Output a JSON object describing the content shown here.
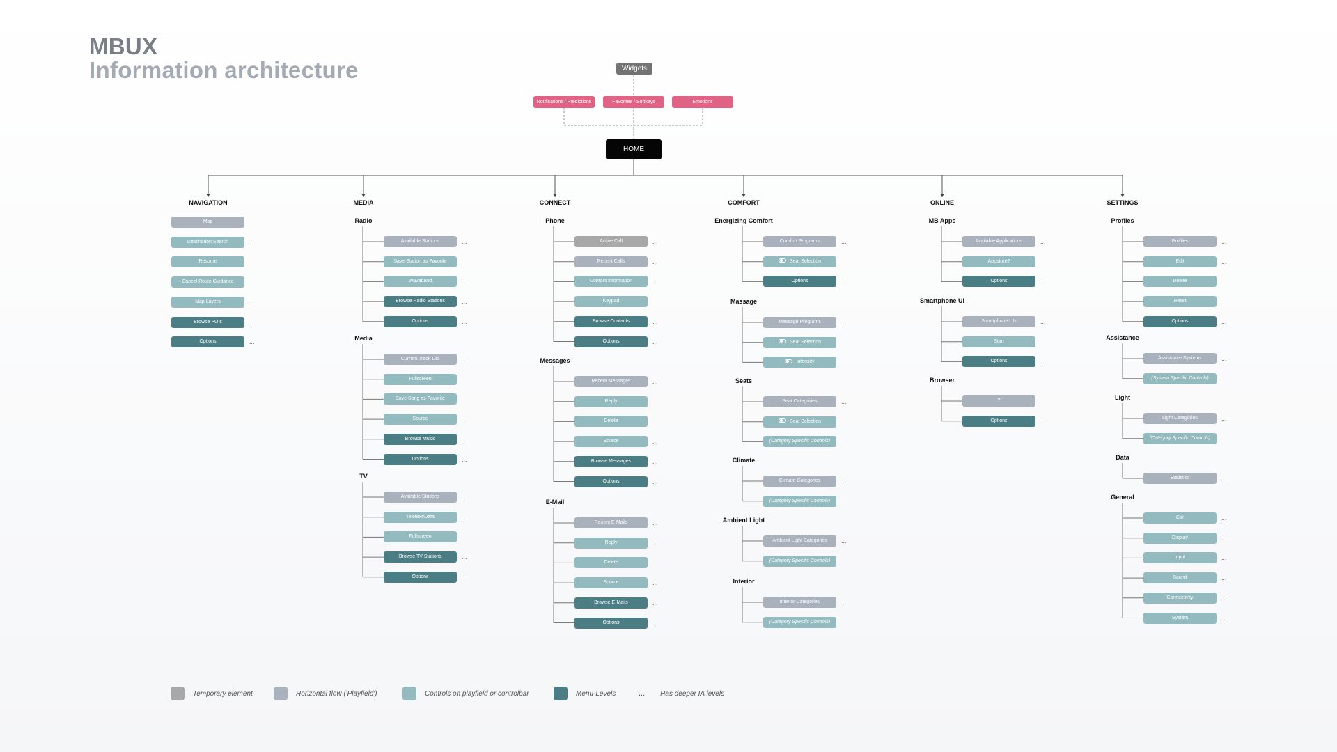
{
  "title": {
    "line1": "MBUX",
    "line2": "Information architecture"
  },
  "widgets_label": "Widgets",
  "top_items": [
    "Notifications / Predictions",
    "Favorites / Softkeys",
    "Emotions"
  ],
  "home_label": "HOME",
  "colors": {
    "temporary": "#a8a8a8",
    "horizontal": "#a9b1bd",
    "controls": "#93bbbf",
    "menu": "#4b7d85",
    "widget_accent": "#e06284"
  },
  "columns": [
    {
      "name": "NAVIGATION",
      "groups": [
        {
          "name": "",
          "items": [
            {
              "label": "Map",
              "type": "h"
            },
            {
              "label": "Destination Search",
              "type": "c",
              "more": true
            },
            {
              "label": "Resume",
              "type": "c"
            },
            {
              "label": "Cancel Route Guidance",
              "type": "c"
            },
            {
              "label": "Map Layers",
              "type": "c",
              "more": true
            },
            {
              "label": "Browse POIs",
              "type": "m",
              "more": true
            },
            {
              "label": "Options",
              "type": "m",
              "more": true
            }
          ]
        }
      ]
    },
    {
      "name": "MEDIA",
      "groups": [
        {
          "name": "Radio",
          "items": [
            {
              "label": "Available Stations",
              "type": "h",
              "more": true
            },
            {
              "label": "Save Station as Favorite",
              "type": "c"
            },
            {
              "label": "Waveband",
              "type": "c",
              "more": true
            },
            {
              "label": "Browse Radio Stations",
              "type": "m",
              "more": true
            },
            {
              "label": "Options",
              "type": "m",
              "more": true
            }
          ]
        },
        {
          "name": "Media",
          "items": [
            {
              "label": "Current Track List",
              "type": "h",
              "more": true
            },
            {
              "label": "Fullscreen",
              "type": "c"
            },
            {
              "label": "Save Song as Favorite",
              "type": "c"
            },
            {
              "label": "Source",
              "type": "c",
              "more": true
            },
            {
              "label": "Browse Music",
              "type": "m",
              "more": true
            },
            {
              "label": "Options",
              "type": "m",
              "more": true
            }
          ]
        },
        {
          "name": "TV",
          "items": [
            {
              "label": "Available Stations",
              "type": "h",
              "more": true
            },
            {
              "label": "Teletext/Data",
              "type": "c",
              "more": true
            },
            {
              "label": "Fullscreen",
              "type": "c"
            },
            {
              "label": "Browse TV Stations",
              "type": "m",
              "more": true
            },
            {
              "label": "Options",
              "type": "m",
              "more": true
            }
          ]
        }
      ]
    },
    {
      "name": "CONNECT",
      "groups": [
        {
          "name": "Phone",
          "items": [
            {
              "label": "Active Call",
              "type": "t",
              "more": true
            },
            {
              "label": "Recent Calls",
              "type": "h",
              "more": true
            },
            {
              "label": "Contact Information",
              "type": "c",
              "more": true
            },
            {
              "label": "Keypad",
              "type": "c"
            },
            {
              "label": "Browse Contacts",
              "type": "m",
              "more": true
            },
            {
              "label": "Options",
              "type": "m",
              "more": true
            }
          ]
        },
        {
          "name": "Messages",
          "items": [
            {
              "label": "Recent Messages",
              "type": "h",
              "more": true
            },
            {
              "label": "Reply",
              "type": "c"
            },
            {
              "label": "Delete",
              "type": "c"
            },
            {
              "label": "Source",
              "type": "c",
              "more": true
            },
            {
              "label": "Browse Messages",
              "type": "m",
              "more": true
            },
            {
              "label": "Options",
              "type": "m",
              "more": true
            }
          ]
        },
        {
          "name": "E-Mail",
          "items": [
            {
              "label": "Recent E-Mails",
              "type": "h",
              "more": true
            },
            {
              "label": "Reply",
              "type": "c",
              "more": true
            },
            {
              "label": "Delete",
              "type": "c"
            },
            {
              "label": "Source",
              "type": "c",
              "more": true
            },
            {
              "label": "Browse E-Mails",
              "type": "m",
              "more": true
            },
            {
              "label": "Options",
              "type": "m",
              "more": true
            }
          ]
        }
      ]
    },
    {
      "name": "COMFORT",
      "groups": [
        {
          "name": "Energizing Comfort",
          "items": [
            {
              "label": "Comfort Programs",
              "type": "h",
              "more": true
            },
            {
              "label": "Seat Selection",
              "type": "c",
              "toggle": true
            },
            {
              "label": "Options",
              "type": "m",
              "more": true
            }
          ]
        },
        {
          "name": "Massage",
          "items": [
            {
              "label": "Massage Programs",
              "type": "h",
              "more": true
            },
            {
              "label": "Seat Selection",
              "type": "c",
              "toggle": true
            },
            {
              "label": "Intensity",
              "type": "c",
              "toggle": true
            }
          ]
        },
        {
          "name": "Seats",
          "items": [
            {
              "label": "Seat Categories",
              "type": "h",
              "more": true
            },
            {
              "label": "Seat Selection",
              "type": "c",
              "toggle": true
            },
            {
              "label": "(Category Specific Controls)",
              "type": "c",
              "italic": true
            }
          ]
        },
        {
          "name": "Climate",
          "items": [
            {
              "label": "Climate Categories",
              "type": "h",
              "more": true
            },
            {
              "label": "(Category Specific Controls)",
              "type": "c",
              "italic": true
            }
          ]
        },
        {
          "name": "Ambient Light",
          "items": [
            {
              "label": "Ambient Light Categories",
              "type": "h",
              "more": true
            },
            {
              "label": "(Category Specific Controls)",
              "type": "c",
              "italic": true
            }
          ]
        },
        {
          "name": "Interior",
          "items": [
            {
              "label": "Interior Categories",
              "type": "h",
              "more": true
            },
            {
              "label": "(Category Specific Controls)",
              "type": "c",
              "italic": true
            }
          ]
        }
      ]
    },
    {
      "name": "ONLINE",
      "groups": [
        {
          "name": "MB Apps",
          "items": [
            {
              "label": "Available Applications",
              "type": "h",
              "more": true
            },
            {
              "label": "Appstore?",
              "type": "c"
            },
            {
              "label": "Options",
              "type": "m",
              "more": true
            }
          ]
        },
        {
          "name": "Smartphone UI",
          "items": [
            {
              "label": "Smartphone UIs",
              "type": "h",
              "more": true
            },
            {
              "label": "Start",
              "type": "c"
            },
            {
              "label": "Options",
              "type": "m",
              "more": true
            }
          ]
        },
        {
          "name": "Browser",
          "items": [
            {
              "label": "?",
              "type": "h"
            },
            {
              "label": "Options",
              "type": "m",
              "more": true
            }
          ]
        }
      ]
    },
    {
      "name": "SETTINGS",
      "groups": [
        {
          "name": "Profiles",
          "items": [
            {
              "label": "Profiles",
              "type": "h",
              "more": true
            },
            {
              "label": "Edit",
              "type": "c",
              "more": true
            },
            {
              "label": "Delete",
              "type": "c"
            },
            {
              "label": "Reset",
              "type": "c"
            },
            {
              "label": "Options",
              "type": "m",
              "more": true
            }
          ]
        },
        {
          "name": "Assistance",
          "items": [
            {
              "label": "Assistance Systems",
              "type": "h",
              "more": true
            },
            {
              "label": "(System Specific Controls)",
              "type": "c",
              "italic": true
            }
          ]
        },
        {
          "name": "Light",
          "items": [
            {
              "label": "Light Categories",
              "type": "h",
              "more": true
            },
            {
              "label": "(Category Specific Controls)",
              "type": "c",
              "italic": true
            }
          ]
        },
        {
          "name": "Data",
          "items": [
            {
              "label": "Statistics",
              "type": "h",
              "more": true
            }
          ]
        },
        {
          "name": "General",
          "items": [
            {
              "label": "Car",
              "type": "c",
              "more": true
            },
            {
              "label": "Display",
              "type": "c",
              "more": true
            },
            {
              "label": "Input",
              "type": "c",
              "more": true
            },
            {
              "label": "Sound",
              "type": "c",
              "more": true
            },
            {
              "label": "Connectivity",
              "type": "c",
              "more": true
            },
            {
              "label": "System",
              "type": "c",
              "more": true
            }
          ]
        }
      ]
    }
  ],
  "more_symbol": "...",
  "legend": [
    {
      "type": "t",
      "label": "Temporary element"
    },
    {
      "type": "h",
      "label": "Horizontal flow ('Playfield')"
    },
    {
      "type": "c",
      "label": "Controls on playfield or controlbar"
    },
    {
      "type": "m",
      "label": "Menu-Levels"
    },
    {
      "type": "dots",
      "label": "Has deeper IA levels"
    }
  ]
}
